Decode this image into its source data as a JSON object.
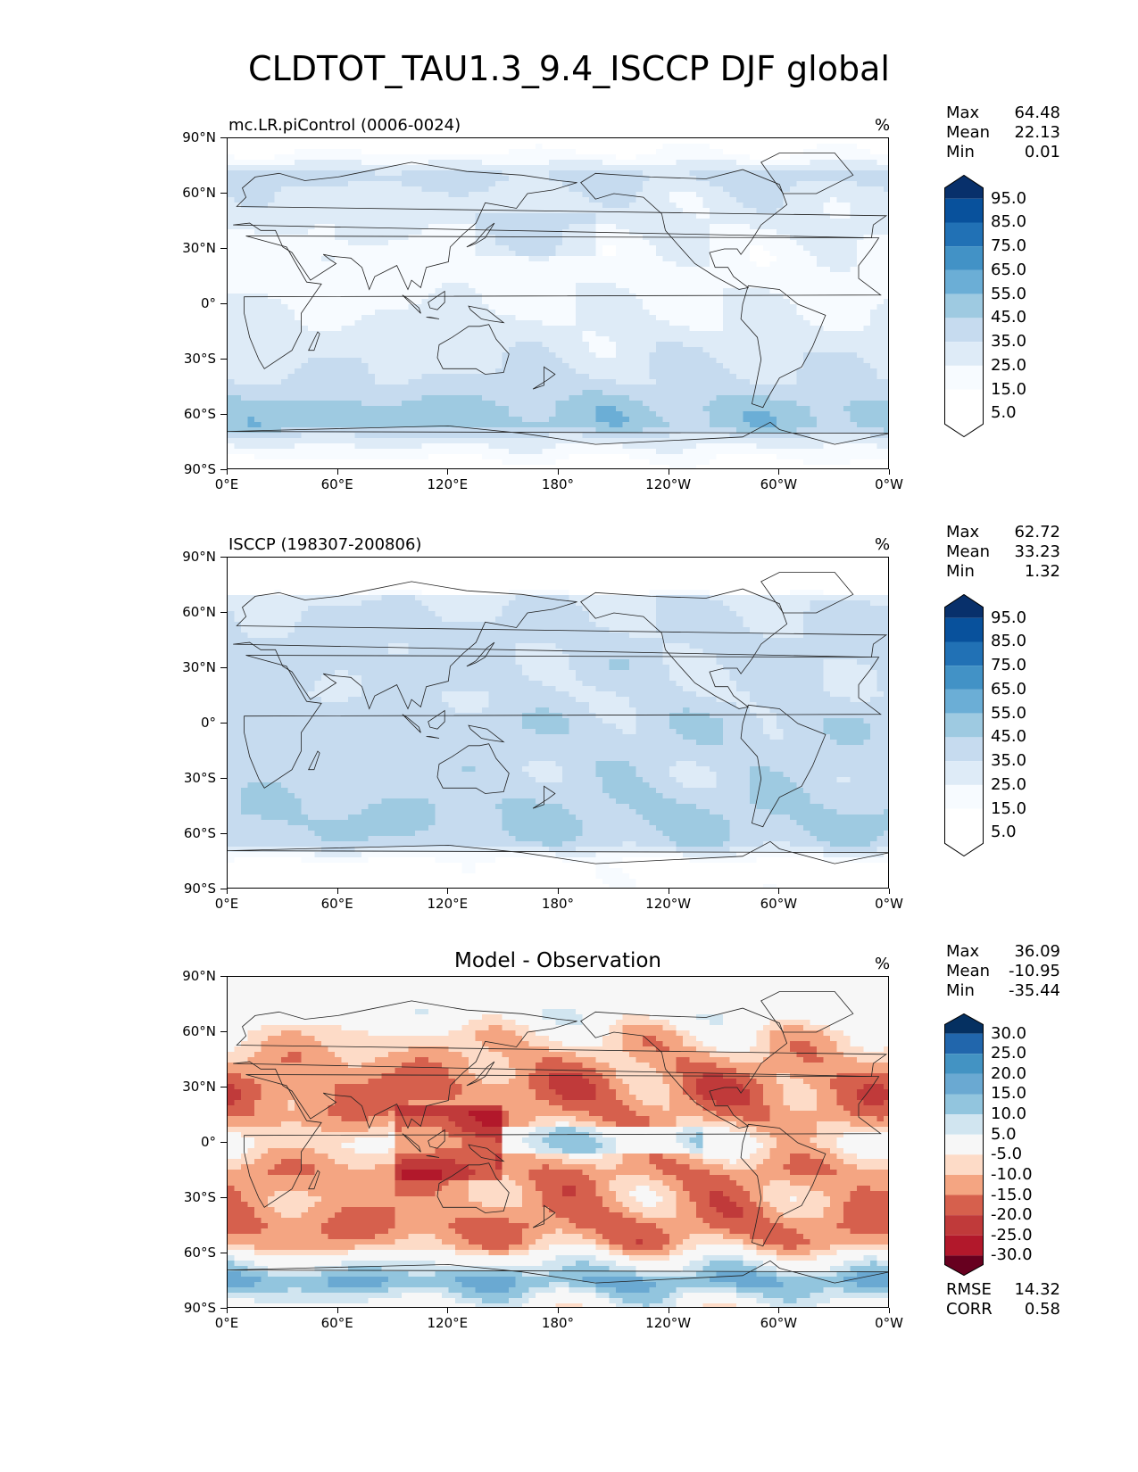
{
  "figure_title": "CLDTOT_TAU1.3_9.4_ISCCP DJF global",
  "chart_data": [
    {
      "type": "heatmap",
      "title": "mc.LR.piControl (0006-0024)",
      "units": "%",
      "stats": {
        "max_label": "Max",
        "max": "64.48",
        "mean_label": "Mean",
        "mean": "22.13",
        "min_label": "Min",
        "min": "0.01"
      },
      "colorbar": {
        "levels": [
          "95.0",
          "85.0",
          "75.0",
          "65.0",
          "55.0",
          "45.0",
          "35.0",
          "25.0",
          "15.0",
          "5.0"
        ],
        "colors": [
          "#08306b",
          "#08519c",
          "#2171b5",
          "#4292c6",
          "#6baed6",
          "#9ecae1",
          "#c6dbef",
          "#deebf7",
          "#f7fbff",
          "#ffffff",
          "#ffffff"
        ]
      },
      "x_ticks": [
        "0°E",
        "60°E",
        "120°E",
        "180°",
        "120°W",
        "60°W",
        "0°W"
      ],
      "y_ticks": [
        "90°N",
        "60°N",
        "30°N",
        "0°",
        "30°S",
        "60°S",
        "90°S"
      ],
      "xlim": [
        0,
        360
      ],
      "ylim": [
        -90,
        90
      ],
      "lat_profile_lats": [
        90,
        80,
        70,
        60,
        45,
        30,
        15,
        0,
        -15,
        -30,
        -45,
        -55,
        -65,
        -75,
        -90
      ],
      "lat_profile_values": [
        5,
        18,
        40,
        32,
        28,
        22,
        20,
        24,
        28,
        33,
        38,
        48,
        50,
        28,
        6
      ]
    },
    {
      "type": "heatmap",
      "title": "ISCCP (198307-200806)",
      "units": "%",
      "stats": {
        "max_label": "Max",
        "max": "62.72",
        "mean_label": "Mean",
        "mean": "33.23",
        "min_label": "Min",
        "min": "1.32"
      },
      "colorbar": {
        "levels": [
          "95.0",
          "85.0",
          "75.0",
          "65.0",
          "55.0",
          "45.0",
          "35.0",
          "25.0",
          "15.0",
          "5.0"
        ],
        "colors": [
          "#08306b",
          "#08519c",
          "#2171b5",
          "#4292c6",
          "#6baed6",
          "#9ecae1",
          "#c6dbef",
          "#deebf7",
          "#f7fbff",
          "#ffffff",
          "#ffffff"
        ]
      },
      "x_ticks": [
        "0°E",
        "60°E",
        "120°E",
        "180°",
        "120°W",
        "60°W",
        "0°W"
      ],
      "y_ticks": [
        "90°N",
        "60°N",
        "30°N",
        "0°",
        "30°S",
        "60°S",
        "90°S"
      ],
      "xlim": [
        0,
        360
      ],
      "ylim": [
        -90,
        90
      ],
      "lat_profile_lats": [
        90,
        72,
        70,
        60,
        45,
        30,
        15,
        0,
        -15,
        -30,
        -45,
        -55,
        -65,
        -75,
        -90
      ],
      "lat_profile_values": [
        0,
        0,
        32,
        36,
        38,
        38,
        36,
        42,
        40,
        40,
        45,
        46,
        42,
        12,
        8
      ]
    },
    {
      "type": "heatmap",
      "title": "Model - Observation",
      "units": "%",
      "stats": {
        "max_label": "Max",
        "max": "36.09",
        "mean_label": "Mean",
        "mean": "-10.95",
        "min_label": "Min",
        "min": "-35.44"
      },
      "colorbar": {
        "levels": [
          "30.0",
          "25.0",
          "20.0",
          "15.0",
          "10.0",
          "5.0",
          "-5.0",
          "-10.0",
          "-15.0",
          "-20.0",
          "-25.0",
          "-30.0"
        ],
        "colors": [
          "#053061",
          "#2166ac",
          "#4393c3",
          "#6aa9d2",
          "#92c5de",
          "#d1e5f0",
          "#f7f7f7",
          "#fddbc7",
          "#f4a582",
          "#d6604d",
          "#c03a3a",
          "#b2182b",
          "#67001f"
        ]
      },
      "x_ticks": [
        "0°E",
        "60°E",
        "120°E",
        "180°",
        "120°W",
        "60°W",
        "0°W"
      ],
      "y_ticks": [
        "90°N",
        "60°N",
        "30°N",
        "0°",
        "30°S",
        "60°S",
        "90°S"
      ],
      "xlim": [
        0,
        360
      ],
      "ylim": [
        -90,
        90
      ],
      "lat_profile_lats": [
        90,
        72,
        70,
        60,
        45,
        30,
        15,
        0,
        -15,
        -30,
        -45,
        -55,
        -65,
        -75,
        -90
      ],
      "lat_profile_values": [
        0,
        0,
        2,
        -6,
        -12,
        -16,
        -14,
        -4,
        -14,
        -12,
        -16,
        -12,
        4,
        16,
        0
      ],
      "metrics": {
        "rmse_label": "RMSE",
        "rmse": "14.32",
        "corr_label": "CORR",
        "corr": "0.58"
      }
    }
  ]
}
